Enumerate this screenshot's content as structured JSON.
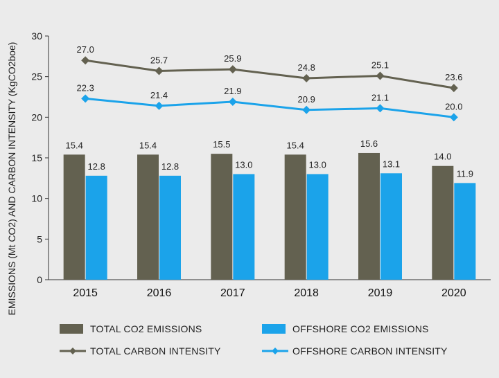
{
  "chart_data": {
    "type": "bar",
    "categories": [
      "2015",
      "2016",
      "2017",
      "2018",
      "2019",
      "2020"
    ],
    "ylabel": "EMISSIONS (Mt CO2) AND CARBON INTENSITY (KgCO2boe)",
    "ylim": [
      0,
      30
    ],
    "yticks": [
      0,
      5,
      10,
      15,
      20,
      25,
      30
    ],
    "grid": false,
    "legend_position": "bottom",
    "series": [
      {
        "name": "TOTAL CO2 EMISSIONS",
        "kind": "bar",
        "color": "#636150",
        "values": [
          15.4,
          15.4,
          15.5,
          15.4,
          15.6,
          14.0
        ],
        "labels": [
          "15.4",
          "15.4",
          "15.5",
          "15.4",
          "15.6",
          "14.0"
        ]
      },
      {
        "name": "OFFSHORE CO2 EMISSIONS",
        "kind": "bar",
        "color": "#1ba3ea",
        "values": [
          12.8,
          12.8,
          13.0,
          13.0,
          13.1,
          11.9
        ],
        "labels": [
          "12.8",
          "12.8",
          "13.0",
          "13.0",
          "13.1",
          "11.9"
        ]
      },
      {
        "name": "TOTAL CARBON INTENSITY",
        "kind": "line",
        "color": "#636150",
        "values": [
          27.0,
          25.7,
          25.9,
          24.8,
          25.1,
          23.6
        ],
        "labels": [
          "27.0",
          "25.7",
          "25.9",
          "24.8",
          "25.1",
          "23.6"
        ]
      },
      {
        "name": "OFFSHORE CARBON INTENSITY",
        "kind": "line",
        "color": "#1ba3ea",
        "values": [
          22.3,
          21.4,
          21.9,
          20.9,
          21.1,
          20.0
        ],
        "labels": [
          "22.3",
          "21.4",
          "21.9",
          "20.9",
          "21.1",
          "20.0"
        ]
      }
    ]
  }
}
